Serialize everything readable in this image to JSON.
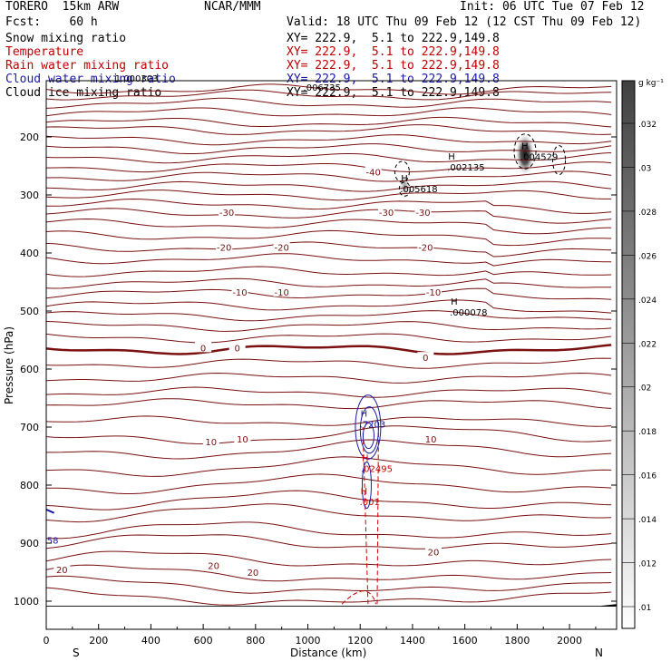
{
  "header": {
    "model": "TORERO  15km ARW",
    "center": "NCAR/MMM",
    "init": "Init: 06 UTC Tue 07 Feb 12",
    "fcst": "Fcst:    60 h",
    "valid": "Valid: 18 UTC Thu 09 Feb 12 (12 CST Thu 09 Feb 12)"
  },
  "legend": [
    {
      "name": "Snow mixing ratio",
      "xy": "XY= 222.9,  5.1 to 222.9,149.8",
      "color": "#000000"
    },
    {
      "name": "Temperature",
      "xy": "XY= 222.9,  5.1 to 222.9,149.8",
      "color": "#c00000"
    },
    {
      "name": "Rain water mixing ratio",
      "xy": "XY= 222.9,  5.1 to 222.9,149.8",
      "color": "#c00000"
    },
    {
      "name": "Cloud water mixing ratio",
      "xy": "XY= 222.9,  5.1 to 222.9,149.8",
      "color": "#1a1aa8"
    },
    {
      "name": "Cloud ice mixing ratio",
      "xy": "XY= 222.9,  5.1 to 222.9,149.8",
      "color": "#000000"
    }
  ],
  "chart_data": {
    "type": "cross-section contour",
    "xlabel": "Distance (km)",
    "ylabel": "Pressure (hPa)",
    "xlim": [
      0,
      2180
    ],
    "ylim": [
      1010,
      75
    ],
    "x_ticks": [
      0,
      200,
      400,
      600,
      800,
      1000,
      1200,
      1400,
      1600,
      1800,
      2000
    ],
    "y_ticks": [
      200,
      300,
      400,
      500,
      600,
      700,
      800,
      900,
      1000
    ],
    "x_end_labels": {
      "left": "S",
      "right": "N"
    },
    "temperature_contour_labels": [
      {
        "text": "-40",
        "x": 1250,
        "p": 260
      },
      {
        "text": "-30",
        "x": 690,
        "p": 330
      },
      {
        "text": "-30",
        "x": 1300,
        "p": 330
      },
      {
        "text": "-30",
        "x": 1440,
        "p": 330
      },
      {
        "text": "-20",
        "x": 680,
        "p": 390
      },
      {
        "text": "-20",
        "x": 900,
        "p": 390
      },
      {
        "text": "-20",
        "x": 1450,
        "p": 390
      },
      {
        "text": "-10",
        "x": 740,
        "p": 467
      },
      {
        "text": "-10",
        "x": 900,
        "p": 467
      },
      {
        "text": "-10",
        "x": 1480,
        "p": 467
      },
      {
        "text": "0",
        "x": 600,
        "p": 563
      },
      {
        "text": "0",
        "x": 730,
        "p": 563
      },
      {
        "text": "0",
        "x": 1450,
        "p": 580
      },
      {
        "text": "10",
        "x": 630,
        "p": 725
      },
      {
        "text": "10",
        "x": 750,
        "p": 720
      },
      {
        "text": "10",
        "x": 1470,
        "p": 720
      },
      {
        "text": "20",
        "x": 60,
        "p": 945
      },
      {
        "text": "20",
        "x": 640,
        "p": 938
      },
      {
        "text": "20",
        "x": 790,
        "p": 950
      },
      {
        "text": "20",
        "x": 1480,
        "p": 915
      }
    ],
    "maxima": [
      {
        "label": ".004529",
        "x": 1830,
        "p": 227,
        "field": "snow"
      },
      {
        "label": ".002135",
        "x": 1550,
        "p": 245,
        "field": "snow"
      },
      {
        "label": ".005618",
        "x": 1370,
        "p": 283,
        "field": "snow"
      },
      {
        "label": ".000078",
        "x": 1560,
        "p": 495,
        "field": "snow"
      },
      {
        "label": ".006735",
        "x": 1000,
        "p": 108,
        "field": "ice"
      },
      {
        "label": "1.000303",
        "x": 280,
        "p": 92,
        "field": "ice"
      },
      {
        "label": ".7203",
        "x": 1215,
        "p": 688,
        "field": "cloud water"
      },
      {
        "label": ".02495",
        "x": 1220,
        "p": 765,
        "field": "rain"
      },
      {
        "label": ".001",
        "x": 1215,
        "p": 822,
        "field": "rain"
      },
      {
        "label": "58",
        "x": 20,
        "p": 888,
        "field": "cloud water"
      }
    ],
    "colorbar": {
      "unit": "g kg⁻¹",
      "ticks": [
        ".032",
        ".03",
        ".028",
        ".026",
        ".024",
        ".022",
        ".02",
        ".018",
        ".016",
        ".014",
        ".012",
        ".01"
      ]
    }
  }
}
